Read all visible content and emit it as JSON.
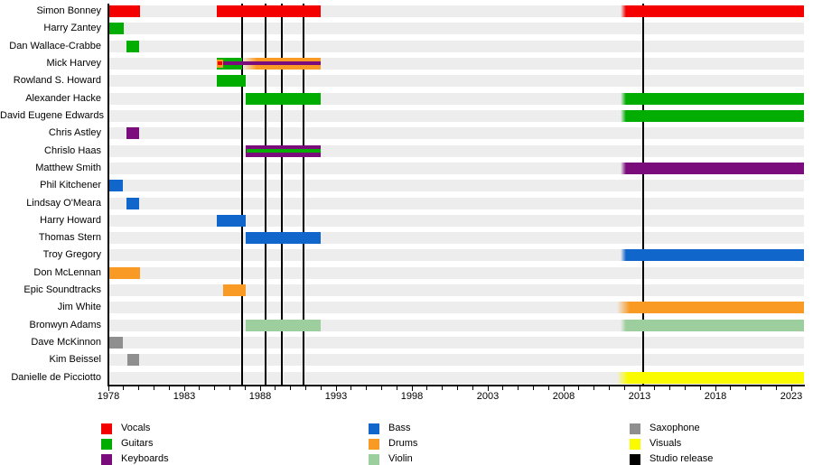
{
  "chart_data": {
    "type": "bar",
    "subtype": "band-member-timeline-gantt",
    "title": "",
    "x_axis": {
      "min": 1978,
      "max": 2023.85,
      "major_tick_labels": [
        "1978",
        "1983",
        "1988",
        "1993",
        "1998",
        "2003",
        "2008",
        "2013",
        "2018",
        "2023"
      ],
      "major_tick_years": [
        1978,
        1983,
        1988,
        1993,
        1998,
        2003,
        2008,
        2013,
        2018,
        2023
      ],
      "minor_tick_step": 1,
      "grid": "off"
    },
    "release_lines": {
      "label": "Studio release",
      "years": [
        1986.83,
        1988.35,
        1989.45,
        1990.87,
        2013.25
      ]
    },
    "members": [
      {
        "name": "Simon Bonney",
        "bars": [
          {
            "from": 1978.0,
            "to": 1980.1,
            "role": "vocals"
          },
          {
            "from": 1985.15,
            "to": 1992.0,
            "role": "vocals"
          },
          {
            "from": 2011.75,
            "to": 2023.85,
            "role": "vocals",
            "fade": 6
          }
        ]
      },
      {
        "name": "Harry Zantey",
        "bars": [
          {
            "from": 1978.0,
            "to": 1979.0,
            "role": "guitars"
          }
        ]
      },
      {
        "name": "Dan Wallace-Crabbe",
        "bars": [
          {
            "from": 1979.2,
            "to": 1980.05,
            "role": "guitars"
          }
        ]
      },
      {
        "name": "Mick Harvey",
        "bars": [
          {
            "from": 1985.15,
            "to": 1986.8,
            "role": "guitars"
          },
          {
            "from": 1986.8,
            "to": 1992.0,
            "role": "drums",
            "fade": 16
          },
          {
            "from": 1985.15,
            "to": 1985.58,
            "role": "drums",
            "layer": "mid"
          },
          {
            "from": 1985.2,
            "to": 1985.52,
            "role": "vocals",
            "layer": "core"
          },
          {
            "from": 1985.58,
            "to": 1992.0,
            "role": "keyboards",
            "layer": "core"
          }
        ]
      },
      {
        "name": "Rowland S. Howard",
        "bars": [
          {
            "from": 1985.15,
            "to": 1987.05,
            "role": "guitars"
          }
        ]
      },
      {
        "name": "Alexander Hacke",
        "bars": [
          {
            "from": 1987.05,
            "to": 1992.0,
            "role": "guitars"
          },
          {
            "from": 2011.75,
            "to": 2023.85,
            "role": "guitars",
            "fade": 6
          }
        ]
      },
      {
        "name": "David Eugene Edwards",
        "bars": [
          {
            "from": 2011.75,
            "to": 2023.85,
            "role": "guitars",
            "fade": 6
          }
        ]
      },
      {
        "name": "Chris Astley",
        "bars": [
          {
            "from": 1979.2,
            "to": 1980.05,
            "role": "keyboards"
          }
        ]
      },
      {
        "name": "Chrislo Haas",
        "bars": [
          {
            "from": 1987.05,
            "to": 1992.0,
            "role": "keyboards"
          },
          {
            "from": 1987.1,
            "to": 1992.0,
            "role": "guitars",
            "layer": "core"
          }
        ]
      },
      {
        "name": "Matthew Smith",
        "bars": [
          {
            "from": 2011.75,
            "to": 2023.85,
            "role": "keyboards",
            "fade": 6
          }
        ]
      },
      {
        "name": "Phil Kitchener",
        "bars": [
          {
            "from": 1978.0,
            "to": 1978.95,
            "role": "bass"
          }
        ]
      },
      {
        "name": "Lindsay O'Meara",
        "bars": [
          {
            "from": 1979.2,
            "to": 1980.05,
            "role": "bass"
          }
        ]
      },
      {
        "name": "Harry Howard",
        "bars": [
          {
            "from": 1985.15,
            "to": 1987.05,
            "role": "bass"
          }
        ]
      },
      {
        "name": "Thomas Stern",
        "bars": [
          {
            "from": 1987.05,
            "to": 1992.0,
            "role": "bass"
          }
        ]
      },
      {
        "name": "Troy Gregory",
        "bars": [
          {
            "from": 2011.75,
            "to": 2023.85,
            "role": "bass",
            "fade": 6
          }
        ]
      },
      {
        "name": "Don McLennan",
        "bars": [
          {
            "from": 1978.0,
            "to": 1980.1,
            "role": "drums"
          }
        ]
      },
      {
        "name": "Epic Soundtracks",
        "bars": [
          {
            "from": 1985.55,
            "to": 1987.05,
            "role": "drums"
          }
        ]
      },
      {
        "name": "Jim White",
        "bars": [
          {
            "from": 2011.5,
            "to": 2023.85,
            "role": "drums",
            "fade": 14
          }
        ]
      },
      {
        "name": "Bronwyn Adams",
        "bars": [
          {
            "from": 1987.05,
            "to": 1992.0,
            "role": "violin"
          },
          {
            "from": 2011.75,
            "to": 2023.85,
            "role": "violin",
            "fade": 6
          }
        ]
      },
      {
        "name": "Dave McKinnon",
        "bars": [
          {
            "from": 1978.0,
            "to": 1978.95,
            "role": "saxophone"
          }
        ]
      },
      {
        "name": "Kim Beissel",
        "bars": [
          {
            "from": 1979.25,
            "to": 1980.05,
            "role": "saxophone"
          }
        ]
      },
      {
        "name": "Danielle de Picciotto",
        "bars": [
          {
            "from": 2011.5,
            "to": 2023.85,
            "role": "visuals",
            "fade": 12
          }
        ]
      }
    ],
    "legend_position": "bottom"
  },
  "colors": {
    "vocals": "#F40000",
    "guitars": "#00AD00",
    "keyboards": "#7B0C7B",
    "bass": "#1166CB",
    "drums": "#F99A25",
    "violin": "#9DCE9D",
    "saxophone": "#8F8F8F",
    "visuals": "#FBFB00",
    "studio_release": "#000000",
    "row_band": "#EDEDED",
    "axis": "#000000",
    "text": "#000000"
  },
  "legend": {
    "columns": [
      [
        {
          "label": "Vocals",
          "role": "vocals"
        },
        {
          "label": "Guitars",
          "role": "guitars"
        },
        {
          "label": "Keyboards",
          "role": "keyboards"
        }
      ],
      [
        {
          "label": "Bass",
          "role": "bass"
        },
        {
          "label": "Drums",
          "role": "drums"
        },
        {
          "label": "Violin",
          "role": "violin"
        }
      ],
      [
        {
          "label": "Saxophone",
          "role": "saxophone"
        },
        {
          "label": "Visuals",
          "role": "visuals"
        },
        {
          "label": "Studio release",
          "role": "studio_release"
        }
      ]
    ]
  }
}
